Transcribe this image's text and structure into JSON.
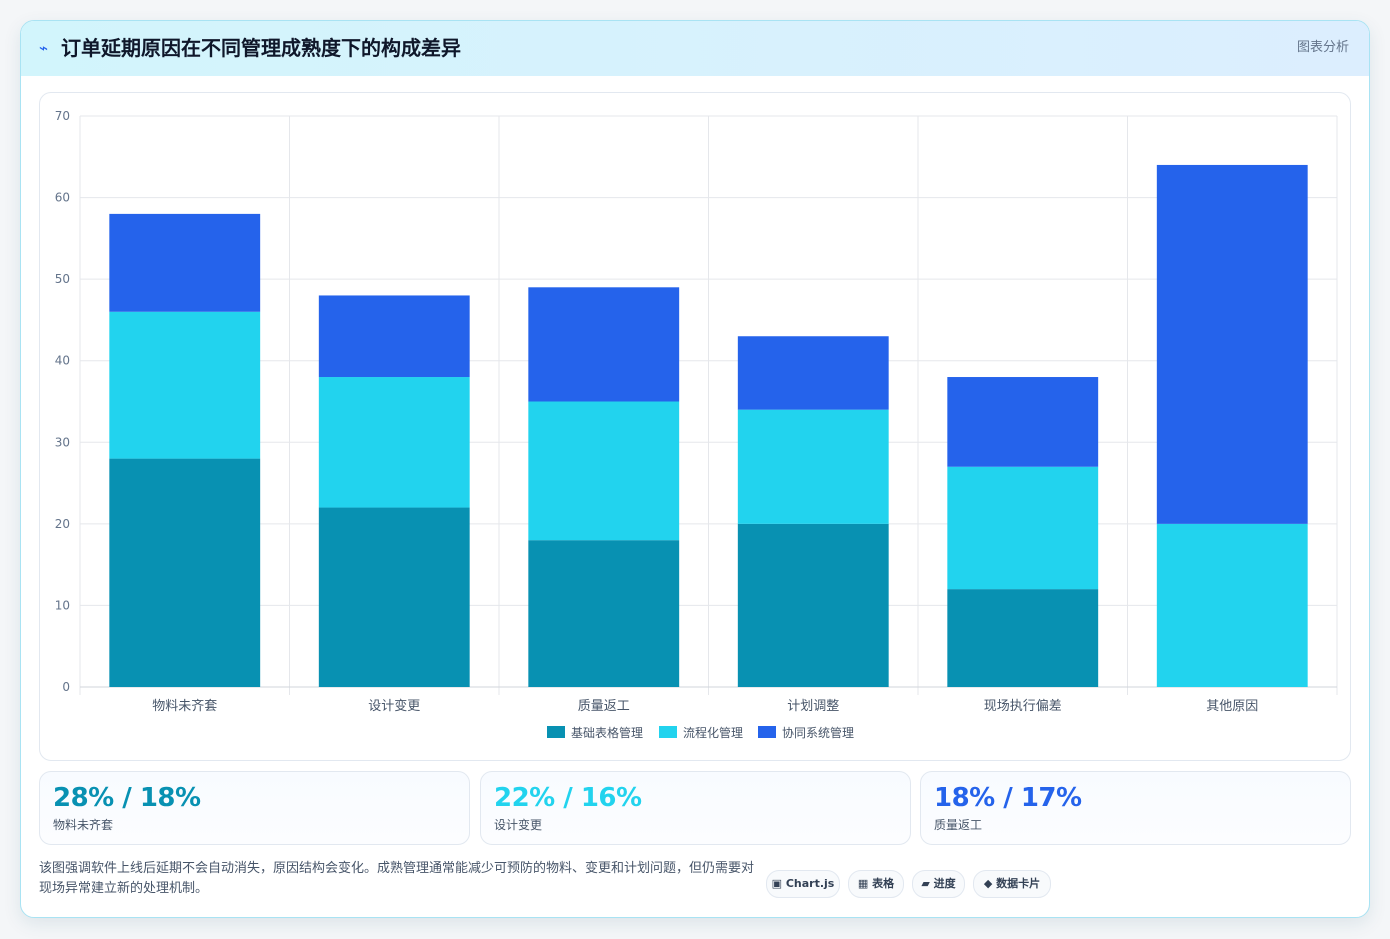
{
  "header": {
    "icon": "lightning-icon",
    "title": "订单延期原因在不同管理成熟度下的构成差异",
    "tag": "图表分析"
  },
  "chart_data": {
    "type": "bar",
    "stacked": true,
    "categories": [
      "物料未齐套",
      "设计变更",
      "质量返工",
      "计划调整",
      "现场执行偏差",
      "其他原因"
    ],
    "series": [
      {
        "name": "基础表格管理",
        "values": [
          28,
          22,
          18,
          20,
          12,
          0
        ],
        "color": "#0891b2"
      },
      {
        "name": "流程化管理",
        "values": [
          18,
          16,
          17,
          14,
          15,
          20
        ],
        "color": "#22d3ee"
      },
      {
        "name": "协同系统管理",
        "values": [
          12,
          10,
          14,
          9,
          11,
          44
        ],
        "color": "#2563eb"
      }
    ],
    "ylim": [
      0,
      70
    ],
    "yticks": [
      0,
      10,
      20,
      30,
      40,
      50,
      60,
      70
    ],
    "grid": true,
    "legend": "bottom"
  },
  "stats": [
    {
      "value": "28% / 18%",
      "label": "物料未齐套",
      "color": "#0891b2"
    },
    {
      "value": "22% / 16%",
      "label": "设计变更",
      "color": "#22d3ee"
    },
    {
      "value": "18% / 17%",
      "label": "质量返工",
      "color": "#2563eb"
    }
  ],
  "note": "该图强调软件上线后延期不会自动消失，原因结构会变化。成熟管理通常能减少可预防的物料、变更和计划问题，但仍需要对现场异常建立新的处理机制。",
  "pills": [
    {
      "label": "▣ Chart.js",
      "icon": "chart-icon"
    },
    {
      "label": "▦ 表格",
      "icon": "table-icon"
    },
    {
      "label": "▰ 进度",
      "icon": "progress-icon"
    },
    {
      "label": "◆ 数据卡片",
      "icon": "card-icon"
    }
  ]
}
